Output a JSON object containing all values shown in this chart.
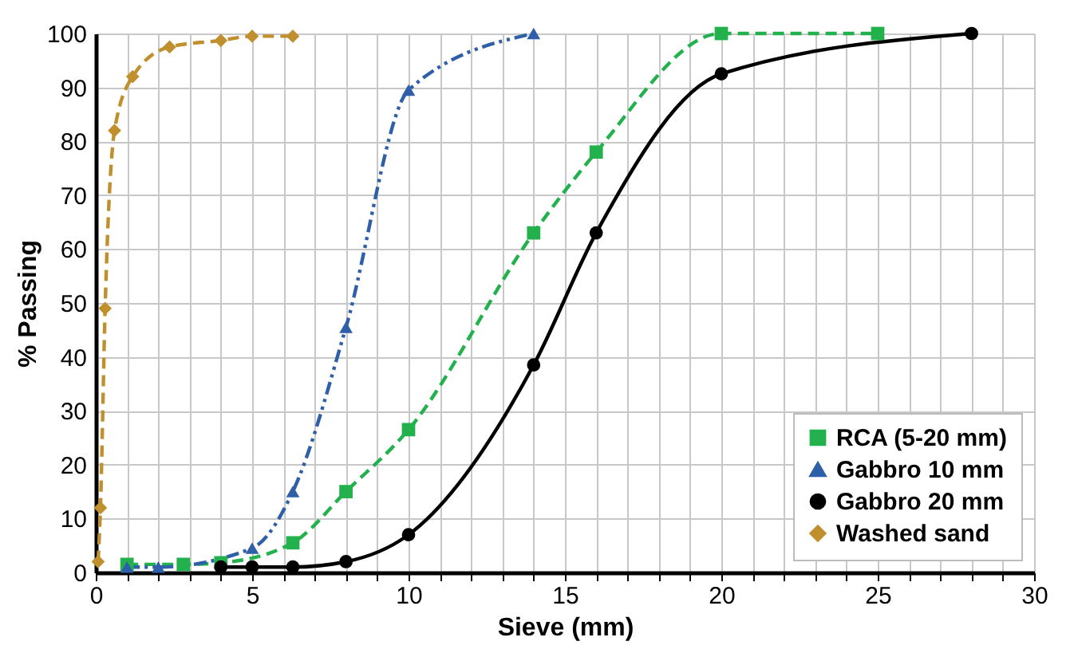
{
  "chart_data": {
    "type": "line",
    "xlabel": "Sieve (mm)",
    "ylabel": "% Passing",
    "xlim": [
      0,
      30
    ],
    "ylim": [
      0,
      100
    ],
    "xticks": [
      0,
      {
        "value": 1,
        "label": null
      },
      {
        "value": 2,
        "label": null
      },
      {
        "value": 3,
        "label": null
      },
      {
        "value": 4,
        "label": null
      },
      5,
      {
        "value": 6,
        "label": null
      },
      {
        "value": 7,
        "label": null
      },
      {
        "value": 8,
        "label": null
      },
      {
        "value": 9,
        "label": null
      },
      10,
      {
        "value": 11,
        "label": null
      },
      {
        "value": 12,
        "label": null
      },
      {
        "value": 13,
        "label": null
      },
      {
        "value": 14,
        "label": null
      },
      15,
      {
        "value": 16,
        "label": null
      },
      {
        "value": 17,
        "label": null
      },
      {
        "value": 18,
        "label": null
      },
      {
        "value": 19,
        "label": null
      },
      20,
      {
        "value": 21,
        "label": null
      },
      {
        "value": 22,
        "label": null
      },
      {
        "value": 23,
        "label": null
      },
      {
        "value": 24,
        "label": null
      },
      25,
      {
        "value": 26,
        "label": null
      },
      {
        "value": 27,
        "label": null
      },
      {
        "value": 28,
        "label": null
      },
      {
        "value": 29,
        "label": null
      },
      30
    ],
    "yticks": [
      0,
      10,
      20,
      30,
      40,
      50,
      60,
      70,
      80,
      90,
      100
    ],
    "grid": true,
    "legend": "bottom right",
    "series": [
      {
        "name": "RCA (5-20 mm)",
        "color": "#22b14c",
        "marker": "square",
        "line_style": "dashed",
        "x": [
          1,
          2.8,
          4,
          6.3,
          8,
          10,
          14,
          16,
          20,
          25
        ],
        "values": [
          1.5,
          1.5,
          1.8,
          5.5,
          15,
          26.5,
          63,
          78,
          100,
          100
        ]
      },
      {
        "name": "Gabbro 10 mm",
        "color": "#2e5fa8",
        "marker": "triangle",
        "line_style": "dotted",
        "x": [
          1,
          2,
          5,
          6.3,
          8,
          10,
          14
        ],
        "values": [
          1,
          1,
          4.5,
          15,
          45.5,
          89.5,
          100
        ]
      },
      {
        "name": "Gabbro 20 mm",
        "color": "#000000",
        "marker": "circle",
        "line_style": "solid",
        "x": [
          4,
          5,
          6.3,
          8,
          10,
          14,
          16,
          20,
          28
        ],
        "values": [
          1,
          1,
          1,
          2,
          7,
          38.5,
          63,
          92.5,
          100
        ]
      },
      {
        "name": "Washed sand",
        "color": "#c0902e",
        "marker": "diamond",
        "line_style": "dashed",
        "x": [
          0.075,
          0.15,
          0.3,
          0.6,
          1.18,
          2.36,
          4,
          5,
          6.3
        ],
        "values": [
          2,
          12,
          49,
          82,
          92,
          97.5,
          98.7,
          99.5,
          99.5
        ]
      }
    ]
  }
}
